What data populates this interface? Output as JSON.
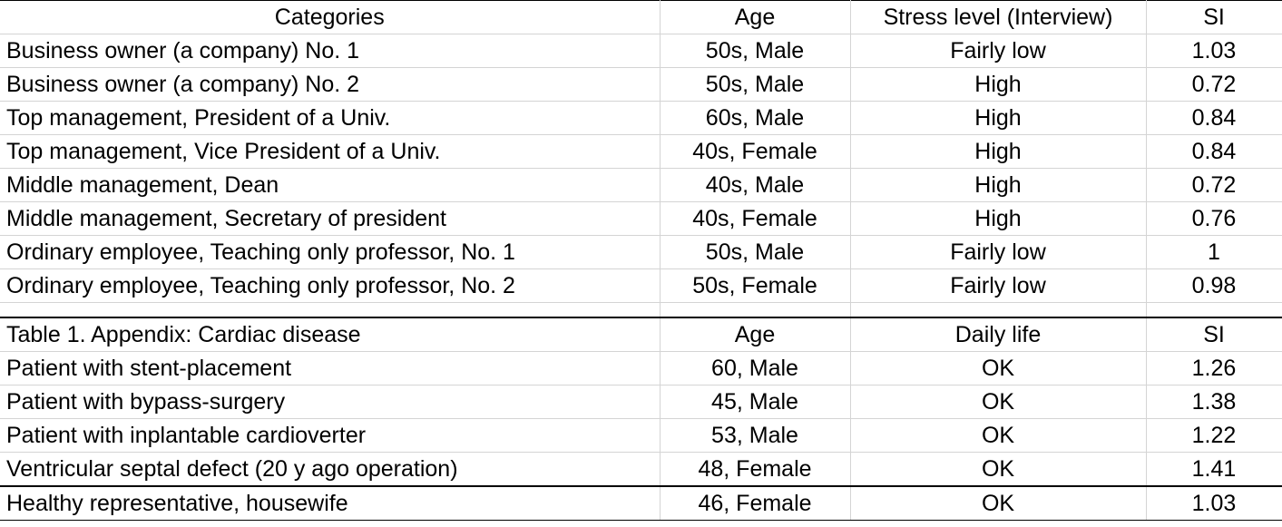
{
  "table1": {
    "headers": [
      "Categories",
      "Age",
      "Stress level (Interview)",
      "SI"
    ],
    "rows": [
      [
        "Business owner (a company) No. 1",
        "50s, Male",
        "Fairly low",
        "1.03"
      ],
      [
        "Business owner (a company) No. 2",
        "50s, Male",
        "High",
        "0.72"
      ],
      [
        "Top management, President of a Univ.",
        "60s, Male",
        "High",
        "0.84"
      ],
      [
        "Top management, Vice President of a Univ.",
        "40s, Female",
        "High",
        "0.84"
      ],
      [
        "Middle management, Dean",
        "40s, Male",
        "High",
        "0.72"
      ],
      [
        "Middle management, Secretary of president",
        "40s, Female",
        "High",
        "0.76"
      ],
      [
        "Ordinary employee, Teaching only professor, No. 1",
        "50s, Male",
        "Fairly low",
        "1"
      ],
      [
        "Ordinary employee, Teaching only professor, No. 2",
        "50s, Female",
        "Fairly low",
        "0.98"
      ]
    ]
  },
  "appendix": {
    "headers": [
      "Table 1. Appendix: Cardiac disease",
      "Age",
      "Daily life",
      "SI"
    ],
    "rows": [
      [
        "Patient with stent-placement",
        "60, Male",
        "OK",
        "1.26"
      ],
      [
        "Patient with bypass-surgery",
        "45, Male",
        "OK",
        "1.38"
      ],
      [
        "Patient with inplantable cardioverter",
        "53, Male",
        "OK",
        "1.22"
      ],
      [
        "Ventricular septal defect (20 y ago operation)",
        "48, Female",
        "OK",
        "1.41"
      ]
    ],
    "healthy": [
      "Healthy representative, housewife",
      "46, Female",
      "OK",
      "1.03"
    ]
  }
}
